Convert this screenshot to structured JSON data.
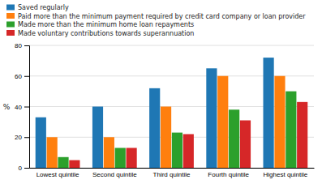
{
  "chart_data": {
    "type": "bar",
    "categories": [
      "Lowest quintile",
      "Second quintile",
      "Third quintile",
      "Fourth quintile",
      "Highest quintile"
    ],
    "series": [
      {
        "name": "Saved regularly",
        "values": [
          33,
          40,
          52,
          65,
          72
        ]
      },
      {
        "name": "Paid more than the minimum payment required by credit card company or loan provider",
        "values": [
          20,
          20,
          40,
          60,
          60
        ]
      },
      {
        "name": "Made more than the minimum home loan repayments",
        "values": [
          7,
          13,
          23,
          38,
          50
        ]
      },
      {
        "name": "Made voluntary contributions towards superannuation",
        "values": [
          5,
          13,
          22,
          31,
          43
        ]
      }
    ],
    "ylabel": "%",
    "ylim": [
      0,
      80
    ],
    "yticks": [
      0,
      20,
      40,
      60,
      80
    ],
    "grid": true,
    "legend": "top"
  }
}
